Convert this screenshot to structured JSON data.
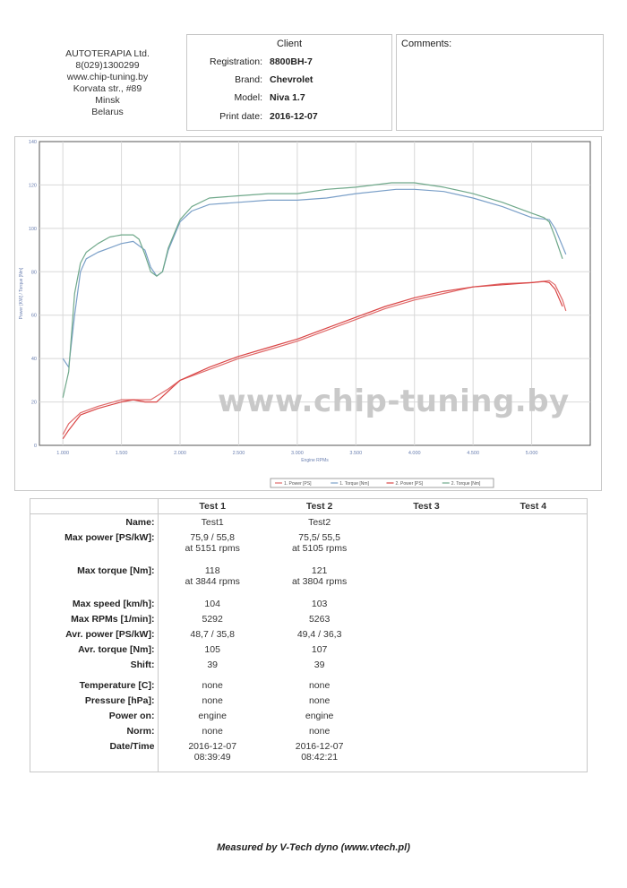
{
  "company": {
    "name": "AUTOTERAPIA Ltd.",
    "phone": "8(029)1300299",
    "website": "www.chip-tuning.by",
    "street": "Korvata str., #89",
    "city": "Minsk",
    "country": "Belarus"
  },
  "client": {
    "title": "Client",
    "fields": [
      {
        "label": "Registration:",
        "value": "8800BH-7"
      },
      {
        "label": "Brand:",
        "value": "Chevrolet"
      },
      {
        "label": "Model:",
        "value": "Niva 1.7"
      },
      {
        "label": "Print date:",
        "value": "2016-12-07"
      }
    ]
  },
  "comments": {
    "title": "Comments:"
  },
  "watermark": "www.chip-tuning.by",
  "chart_data": {
    "type": "line",
    "ylabel": "Power [KW] / Torque [Nm]",
    "xlabel": "Engine RPMs",
    "xlim": [
      800,
      5500
    ],
    "ylim": [
      0,
      140
    ],
    "x_ticks": [
      1000,
      1500,
      2000,
      2500,
      3000,
      3500,
      4000,
      4500,
      5000
    ],
    "x_tick_labels": [
      "1.000",
      "1.500",
      "2.000",
      "2.500",
      "3.000",
      "3.500",
      "4.000",
      "4.500",
      "5.000"
    ],
    "y_ticks": [
      0,
      20,
      40,
      60,
      80,
      100,
      120,
      140
    ],
    "y_tick_labels": [
      "0",
      "20",
      "40",
      "60",
      "80",
      "100",
      "120",
      "140"
    ],
    "grid": true,
    "legend_position": "bottom-right",
    "series": [
      {
        "name": "1. Power [PS]",
        "color": "#e06a6a",
        "points": [
          [
            1000,
            5
          ],
          [
            1050,
            10
          ],
          [
            1150,
            15
          ],
          [
            1300,
            18
          ],
          [
            1500,
            21
          ],
          [
            1650,
            21
          ],
          [
            1750,
            21
          ],
          [
            1900,
            26
          ],
          [
            2000,
            30
          ],
          [
            2250,
            35
          ],
          [
            2500,
            40
          ],
          [
            2750,
            44
          ],
          [
            3000,
            48
          ],
          [
            3250,
            53
          ],
          [
            3500,
            58
          ],
          [
            3750,
            63
          ],
          [
            4000,
            67
          ],
          [
            4250,
            70
          ],
          [
            4500,
            73
          ],
          [
            4750,
            74.5
          ],
          [
            5000,
            75
          ],
          [
            5151,
            75.9
          ],
          [
            5200,
            74
          ],
          [
            5263,
            67
          ],
          [
            5292,
            62
          ]
        ]
      },
      {
        "name": "1. Torque [Nm]",
        "color": "#7a9fc8",
        "points": [
          [
            1000,
            40
          ],
          [
            1050,
            36
          ],
          [
            1100,
            60
          ],
          [
            1150,
            80
          ],
          [
            1200,
            86
          ],
          [
            1300,
            89
          ],
          [
            1400,
            91
          ],
          [
            1500,
            93
          ],
          [
            1600,
            94
          ],
          [
            1700,
            90
          ],
          [
            1750,
            82
          ],
          [
            1800,
            78
          ],
          [
            1850,
            80
          ],
          [
            1900,
            90
          ],
          [
            2000,
            103
          ],
          [
            2100,
            108
          ],
          [
            2250,
            111
          ],
          [
            2500,
            112
          ],
          [
            2750,
            113
          ],
          [
            3000,
            113
          ],
          [
            3250,
            114
          ],
          [
            3500,
            116
          ],
          [
            3844,
            118
          ],
          [
            4000,
            118
          ],
          [
            4250,
            117
          ],
          [
            4500,
            114
          ],
          [
            4750,
            110
          ],
          [
            5000,
            105
          ],
          [
            5151,
            104
          ],
          [
            5200,
            100
          ],
          [
            5292,
            88
          ]
        ]
      },
      {
        "name": "2. Power [PS]",
        "color": "#d94545",
        "points": [
          [
            1000,
            3
          ],
          [
            1050,
            7
          ],
          [
            1150,
            14
          ],
          [
            1300,
            17
          ],
          [
            1500,
            20
          ],
          [
            1600,
            21
          ],
          [
            1700,
            20
          ],
          [
            1800,
            20
          ],
          [
            1900,
            25
          ],
          [
            2000,
            30
          ],
          [
            2250,
            36
          ],
          [
            2500,
            41
          ],
          [
            2750,
            45
          ],
          [
            3000,
            49
          ],
          [
            3250,
            54
          ],
          [
            3500,
            59
          ],
          [
            3750,
            64
          ],
          [
            4000,
            68
          ],
          [
            4250,
            71
          ],
          [
            4500,
            73
          ],
          [
            4750,
            74
          ],
          [
            5000,
            75
          ],
          [
            5105,
            75.5
          ],
          [
            5150,
            75
          ],
          [
            5200,
            72
          ],
          [
            5263,
            64
          ]
        ]
      },
      {
        "name": "2. Torque [Nm]",
        "color": "#6fa88a",
        "points": [
          [
            1000,
            22
          ],
          [
            1050,
            34
          ],
          [
            1100,
            70
          ],
          [
            1150,
            84
          ],
          [
            1200,
            89
          ],
          [
            1300,
            93
          ],
          [
            1400,
            96
          ],
          [
            1500,
            97
          ],
          [
            1600,
            97
          ],
          [
            1650,
            95
          ],
          [
            1700,
            88
          ],
          [
            1750,
            80
          ],
          [
            1800,
            78
          ],
          [
            1850,
            80
          ],
          [
            1900,
            91
          ],
          [
            2000,
            104
          ],
          [
            2100,
            110
          ],
          [
            2250,
            114
          ],
          [
            2500,
            115
          ],
          [
            2750,
            116
          ],
          [
            3000,
            116
          ],
          [
            3250,
            118
          ],
          [
            3500,
            119
          ],
          [
            3804,
            121
          ],
          [
            4000,
            121
          ],
          [
            4250,
            119
          ],
          [
            4500,
            116
          ],
          [
            4750,
            112
          ],
          [
            5000,
            107
          ],
          [
            5105,
            105
          ],
          [
            5150,
            103
          ],
          [
            5200,
            96
          ],
          [
            5263,
            86
          ]
        ]
      }
    ]
  },
  "results": {
    "headers": [
      "Test 1",
      "Test 2",
      "Test 3",
      "Test 4"
    ],
    "rows": [
      {
        "label": "Name:",
        "test1": "Test1",
        "test2": "Test2"
      },
      {
        "label": "Max power [PS/kW]:",
        "test1": "75,9 / 55,8",
        "test1_sub": "at 5151 rpms",
        "test2": "75,5/ 55,5",
        "test2_sub": "at 5105 rpms"
      },
      {
        "label": "Max torque [Nm]:",
        "test1": "118",
        "test1_sub": "at 3844 rpms",
        "test2": "121",
        "test2_sub": "at 3804 rpms"
      },
      {
        "label": "Max speed [km/h]:",
        "test1": "104",
        "test2": "103"
      },
      {
        "label": "Max RPMs [1/min]:",
        "test1": "5292",
        "test2": "5263"
      },
      {
        "label": "Avr. power [PS/kW]:",
        "test1": "48,7 / 35,8",
        "test2": "49,4 / 36,3"
      },
      {
        "label": "Avr. torque [Nm]:",
        "test1": "105",
        "test2": "107"
      },
      {
        "label": "Shift:",
        "test1": "39",
        "test2": "39"
      },
      {
        "label": "Temperature [C]:",
        "test1": "none",
        "test2": "none"
      },
      {
        "label": "Pressure [hPa]:",
        "test1": "none",
        "test2": "none"
      },
      {
        "label": "Power on:",
        "test1": "engine",
        "test2": "engine"
      },
      {
        "label": "Norm:",
        "test1": "none",
        "test2": "none"
      },
      {
        "label": "Date/Time",
        "test1": "2016-12-07",
        "test1_sub": "08:39:49",
        "test2": "2016-12-07",
        "test2_sub": "08:42:21"
      }
    ]
  },
  "footer": "Measured by V-Tech dyno (www.vtech.pl)"
}
